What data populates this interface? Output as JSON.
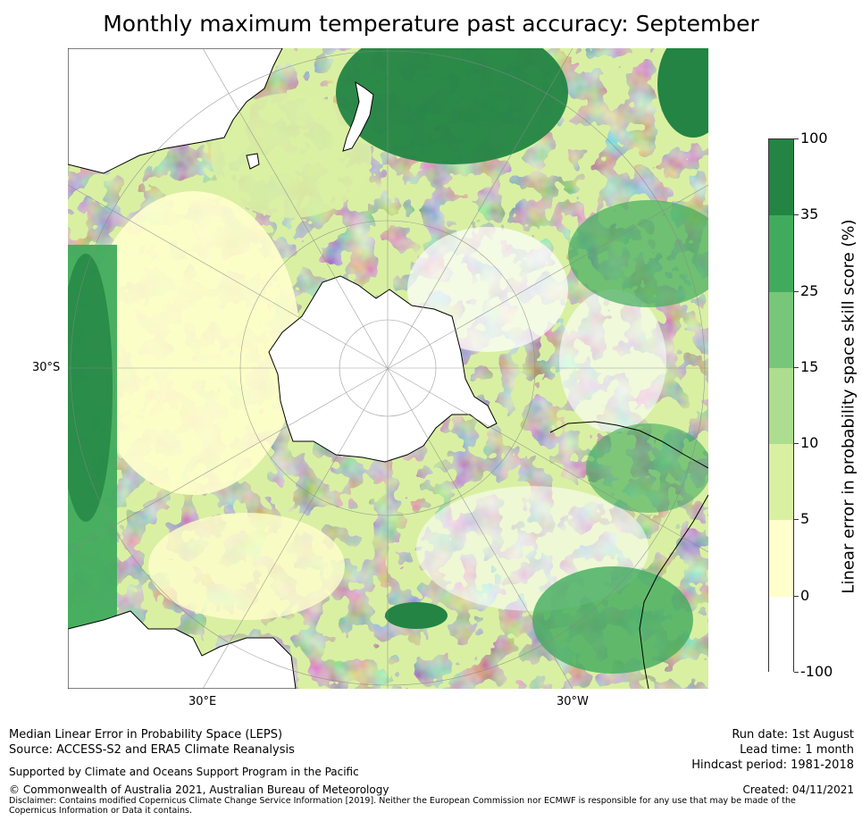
{
  "title": "Monthly maximum temperature past accuracy: September",
  "map": {
    "type": "south polar stereographic skill map",
    "lat_labels": [
      "30°S"
    ],
    "lon_labels": [
      "30°E",
      "30°W"
    ],
    "land_color": "#ffffff",
    "coast_color": "#000000",
    "grid_color": "#888888"
  },
  "colorbar": {
    "label": "Linear error in probability space skill score (%)",
    "ticks": [
      "100",
      "35",
      "25",
      "15",
      "10",
      "5",
      "0",
      "-100"
    ],
    "bins": [
      {
        "range": "35–100",
        "color": "#238443"
      },
      {
        "range": "25–35",
        "color": "#41ab5d"
      },
      {
        "range": "15–25",
        "color": "#78c679"
      },
      {
        "range": "10–15",
        "color": "#addd8e"
      },
      {
        "range": "5–10",
        "color": "#d9f0a3"
      },
      {
        "range": "0–5",
        "color": "#ffffcc"
      },
      {
        "range": "-100–0",
        "color": "#ffffff"
      }
    ]
  },
  "footer": {
    "line1": "Median Linear Error in Probability Space (LEPS)",
    "line2": "Source: ACCESS-S2 and ERA5 Climate Reanalysis",
    "support": "Supported by Climate and Oceans Support Program in the Pacific",
    "copyright": "© Commonwealth of Australia 2021, Australian Bureau of Meteorology",
    "disclaimer": "Disclaimer: Contains modified Copernicus Climate Change Service Information [2019]. Neither the European Commission nor ECMWF is responsible for any use that may be made of the Copernicus Information or Data it contains.",
    "run_date": "Run date: 1st August",
    "lead_time": "Lead time: 1 month",
    "hindcast": "Hindcast period: 1981-2018",
    "created": "Created: 04/11/2021"
  }
}
